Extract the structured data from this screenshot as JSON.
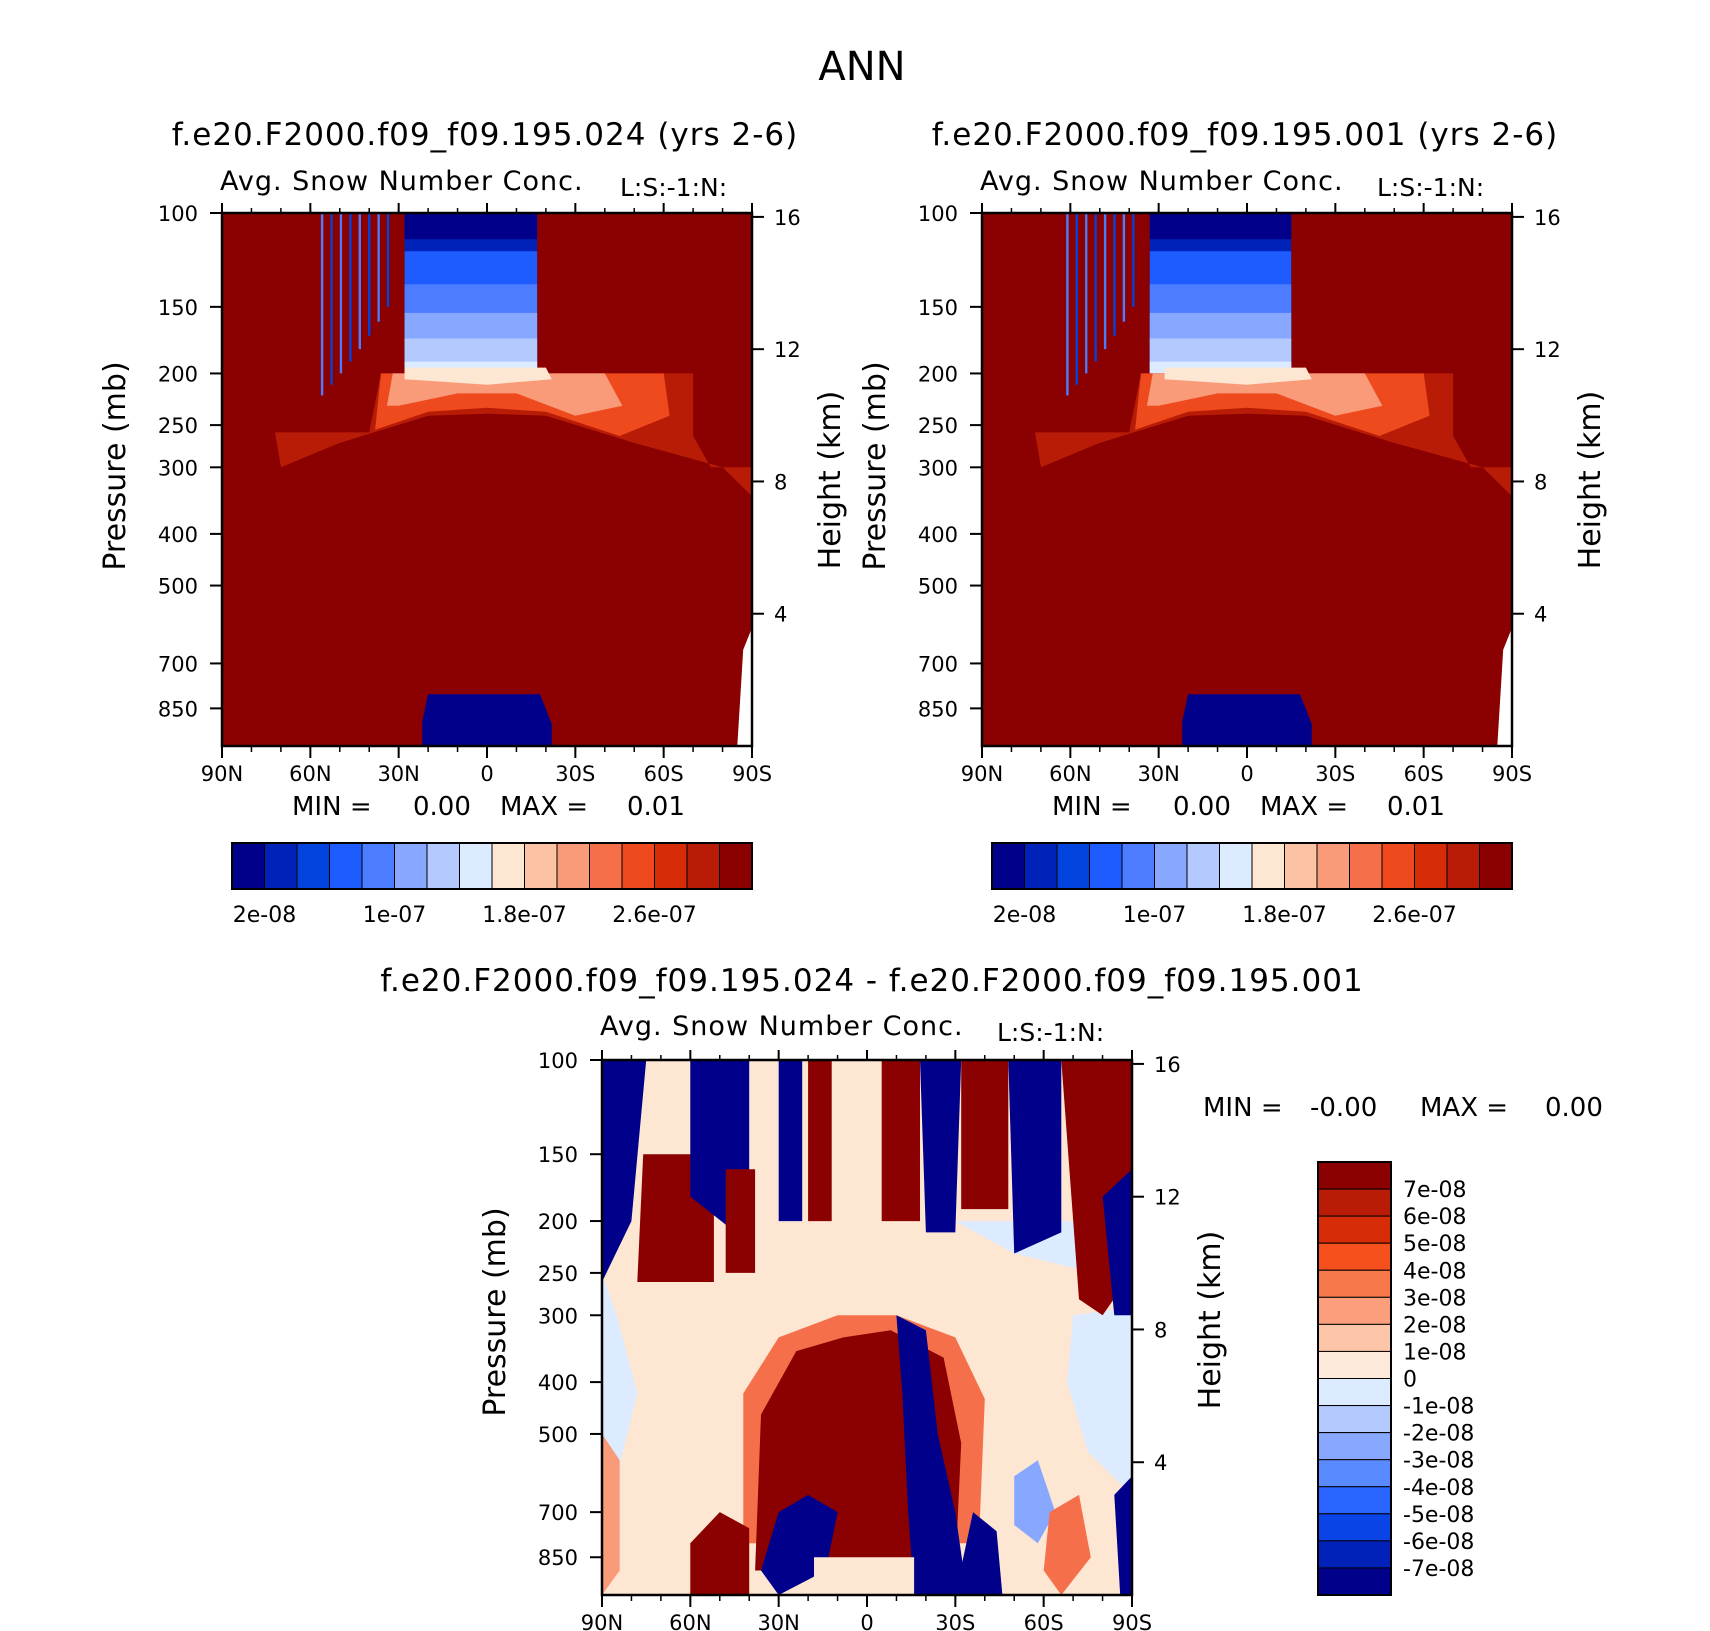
{
  "figure": {
    "title": "ANN"
  },
  "chart_data": [
    {
      "type": "heatmap",
      "title": "f.e20.F2000.f09_f09.195.024 (yrs 2-6)",
      "subtitle": "Avg. Snow Number Conc.",
      "code": "L:S:-1:N:",
      "xlabel": "",
      "ylabel": "Pressure (mb)",
      "y2label": "Height (km)",
      "x_ticks": [
        "90N",
        "60N",
        "30N",
        "0",
        "30S",
        "60S",
        "90S"
      ],
      "y_ticks": [
        "100",
        "150",
        "200",
        "250",
        "300",
        "400",
        "500",
        "700",
        "850"
      ],
      "y2_ticks": [
        "16",
        "12",
        "8",
        "4"
      ],
      "ylim": [
        100,
        1000
      ],
      "xlim": [
        90,
        -90
      ],
      "stats": {
        "min_label": "MIN =",
        "min": "0.00",
        "max_label": "MAX =",
        "max": "0.01"
      },
      "colorbar": {
        "orientation": "horizontal",
        "colors": [
          "#00008b",
          "#0022b8",
          "#0044dd",
          "#1e5cff",
          "#4c7cff",
          "#88a8ff",
          "#b4caff",
          "#dcebff",
          "#fde6d2",
          "#fcc2a4",
          "#f99a78",
          "#f5704a",
          "#ee4a1e",
          "#d62c08",
          "#b81c06",
          "#8b0000"
        ],
        "tick_labels": [
          "2e-08",
          "1e-07",
          "1.8e-07",
          "2.6e-07"
        ]
      }
    },
    {
      "type": "heatmap",
      "title": "f.e20.F2000.f09_f09.195.001 (yrs 2-6)",
      "subtitle": "Avg. Snow Number Conc.",
      "code": "L:S:-1:N:",
      "xlabel": "",
      "ylabel": "Pressure (mb)",
      "y2label": "Height (km)",
      "x_ticks": [
        "90N",
        "60N",
        "30N",
        "0",
        "30S",
        "60S",
        "90S"
      ],
      "y_ticks": [
        "100",
        "150",
        "200",
        "250",
        "300",
        "400",
        "500",
        "700",
        "850"
      ],
      "y2_ticks": [
        "16",
        "12",
        "8",
        "4"
      ],
      "ylim": [
        100,
        1000
      ],
      "xlim": [
        90,
        -90
      ],
      "stats": {
        "min_label": "MIN =",
        "min": "0.00",
        "max_label": "MAX =",
        "max": "0.01"
      },
      "colorbar": {
        "orientation": "horizontal",
        "colors": [
          "#00008b",
          "#0022b8",
          "#0044dd",
          "#1e5cff",
          "#4c7cff",
          "#88a8ff",
          "#b4caff",
          "#dcebff",
          "#fde6d2",
          "#fcc2a4",
          "#f99a78",
          "#f5704a",
          "#ee4a1e",
          "#d62c08",
          "#b81c06",
          "#8b0000"
        ],
        "tick_labels": [
          "2e-08",
          "1e-07",
          "1.8e-07",
          "2.6e-07"
        ]
      }
    },
    {
      "type": "heatmap",
      "title": "f.e20.F2000.f09_f09.195.024 - f.e20.F2000.f09_f09.195.001",
      "subtitle": "Avg. Snow Number Conc.",
      "code": "L:S:-1:N:",
      "xlabel": "",
      "ylabel": "Pressure (mb)",
      "y2label": "Height (km)",
      "x_ticks": [
        "90N",
        "60N",
        "30N",
        "0",
        "30S",
        "60S",
        "90S"
      ],
      "y_ticks": [
        "100",
        "150",
        "200",
        "250",
        "300",
        "400",
        "500",
        "700",
        "850"
      ],
      "y2_ticks": [
        "16",
        "12",
        "8",
        "4"
      ],
      "ylim": [
        100,
        1000
      ],
      "xlim": [
        90,
        -90
      ],
      "stats": {
        "min_label": "MIN =",
        "min": "-0.00",
        "max_label": "MAX =",
        "max": "0.00"
      },
      "colorbar": {
        "orientation": "vertical",
        "colors": [
          "#8b0000",
          "#b81c06",
          "#d62c08",
          "#f5501e",
          "#f7784a",
          "#fa9e7c",
          "#fdc6a8",
          "#feeadb",
          "#dcebff",
          "#b4caff",
          "#88a8ff",
          "#5a8aff",
          "#2a64ff",
          "#0a44e6",
          "#0022b8",
          "#00008b"
        ],
        "tick_labels": [
          "7e-08",
          "6e-08",
          "5e-08",
          "4e-08",
          "3e-08",
          "2e-08",
          "1e-08",
          "0",
          "-1e-08",
          "-2e-08",
          "-3e-08",
          "-4e-08",
          "-5e-08",
          "-6e-08",
          "-7e-08"
        ]
      }
    }
  ]
}
